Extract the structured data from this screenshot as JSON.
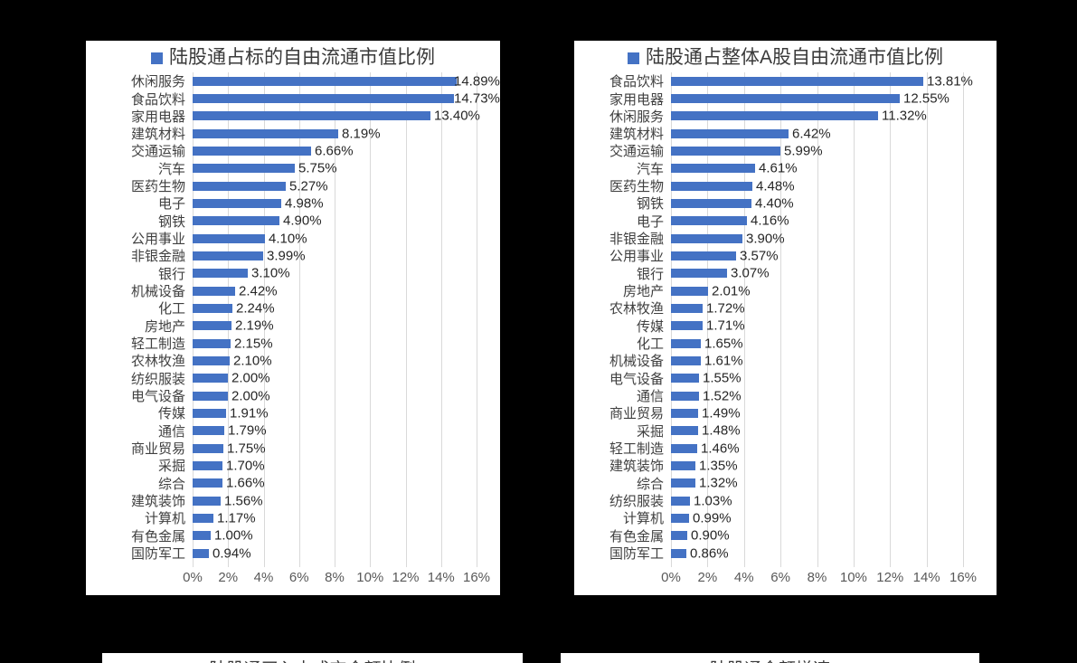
{
  "colors": {
    "page_background": "#000000",
    "panel_background": "#ffffff",
    "bar": "#4472c4",
    "legend_swatch": "#4472c4",
    "gridline": "#d9d9d9",
    "title_text": "#3a3a3a",
    "category_text": "#404040",
    "value_text": "#262626",
    "axis_text": "#595959"
  },
  "chart_data": [
    {
      "type": "bar",
      "orientation": "horizontal",
      "title": "陆股通占标的自由流通市值比例",
      "legend_position": "top",
      "grid": "vertical",
      "xlim": [
        0,
        16
      ],
      "x_ticks": [
        "0%",
        "2%",
        "4%",
        "6%",
        "8%",
        "10%",
        "12%",
        "14%",
        "16%"
      ],
      "bar_color": "#4472c4",
      "categories": [
        "休闲服务",
        "食品饮料",
        "家用电器",
        "建筑材料",
        "交通运输",
        "汽车",
        "医药生物",
        "电子",
        "钢铁",
        "公用事业",
        "非银金融",
        "银行",
        "机械设备",
        "化工",
        "房地产",
        "轻工制造",
        "农林牧渔",
        "纺织服装",
        "电气设备",
        "传媒",
        "通信",
        "商业贸易",
        "采掘",
        "综合",
        "建筑装饰",
        "计算机",
        "有色金属",
        "国防军工"
      ],
      "values": [
        14.89,
        14.73,
        13.4,
        8.19,
        6.66,
        5.75,
        5.27,
        4.98,
        4.9,
        4.1,
        3.99,
        3.1,
        2.42,
        2.24,
        2.19,
        2.15,
        2.1,
        2.0,
        2.0,
        1.91,
        1.79,
        1.75,
        1.7,
        1.66,
        1.56,
        1.17,
        1.0,
        0.94
      ],
      "value_labels": [
        "14.89%",
        "14.73%",
        "13.40%",
        "8.19%",
        "6.66%",
        "5.75%",
        "5.27%",
        "4.98%",
        "4.90%",
        "4.10%",
        "3.99%",
        "3.10%",
        "2.42%",
        "2.24%",
        "2.19%",
        "2.15%",
        "2.10%",
        "2.00%",
        "2.00%",
        "1.91%",
        "1.79%",
        "1.75%",
        "1.70%",
        "1.66%",
        "1.56%",
        "1.17%",
        "1.00%",
        "0.94%"
      ]
    },
    {
      "type": "bar",
      "orientation": "horizontal",
      "title": "陆股通占整体A股自由流通市值比例",
      "legend_position": "top",
      "grid": "vertical",
      "xlim": [
        0,
        16
      ],
      "x_ticks": [
        "0%",
        "2%",
        "4%",
        "6%",
        "8%",
        "10%",
        "12%",
        "14%",
        "16%"
      ],
      "bar_color": "#4472c4",
      "categories": [
        "食品饮料",
        "家用电器",
        "休闲服务",
        "建筑材料",
        "交通运输",
        "汽车",
        "医药生物",
        "钢铁",
        "电子",
        "非银金融",
        "公用事业",
        "银行",
        "房地产",
        "农林牧渔",
        "传媒",
        "化工",
        "机械设备",
        "电气设备",
        "通信",
        "商业贸易",
        "采掘",
        "轻工制造",
        "建筑装饰",
        "综合",
        "纺织服装",
        "计算机",
        "有色金属",
        "国防军工"
      ],
      "values": [
        13.81,
        12.55,
        11.32,
        6.42,
        5.99,
        4.61,
        4.48,
        4.4,
        4.16,
        3.9,
        3.57,
        3.07,
        2.01,
        1.72,
        1.71,
        1.65,
        1.61,
        1.55,
        1.52,
        1.49,
        1.48,
        1.46,
        1.35,
        1.32,
        1.03,
        0.99,
        0.9,
        0.86
      ],
      "value_labels": [
        "13.81%",
        "12.55%",
        "11.32%",
        "6.42%",
        "5.99%",
        "4.61%",
        "4.48%",
        "4.40%",
        "4.16%",
        "3.90%",
        "3.57%",
        "3.07%",
        "2.01%",
        "1.72%",
        "1.71%",
        "1.65%",
        "1.61%",
        "1.55%",
        "1.52%",
        "1.49%",
        "1.48%",
        "1.46%",
        "1.35%",
        "1.32%",
        "1.03%",
        "0.99%",
        "0.90%",
        "0.86%"
      ]
    }
  ],
  "partial_charts": [
    {
      "title": "陆股通买入占成交金额比例"
    },
    {
      "title": "陆股通金额增速"
    }
  ]
}
